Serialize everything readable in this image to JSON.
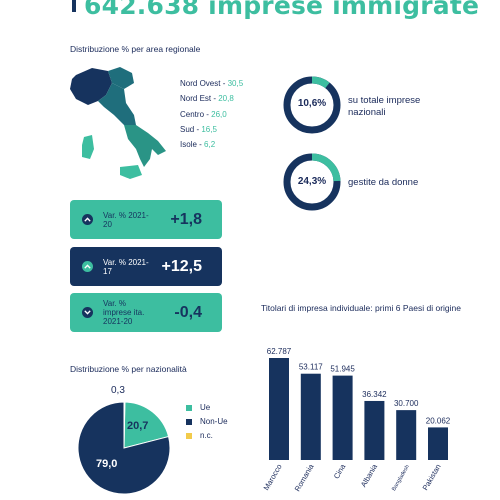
{
  "headline": "642.638 imprese immigrate",
  "colors": {
    "navy": "#16335e",
    "teal": "#3dbea0",
    "mid": "#1f6e7c",
    "yellow": "#f2cb4b"
  },
  "regional": {
    "title": "Distribuzione % per area regionale",
    "items": [
      {
        "label": "Nord Ovest",
        "value": "30,5"
      },
      {
        "label": "Nord Est",
        "value": "20,8"
      },
      {
        "label": "Centro",
        "value": "26,0"
      },
      {
        "label": "Sud",
        "value": "16,5"
      },
      {
        "label": "Isole",
        "value": "6,2"
      }
    ]
  },
  "donuts": [
    {
      "value": "10,6%",
      "percent": 10.6,
      "caption": "su totale imprese nazionali"
    },
    {
      "value": "24,3%",
      "percent": 24.3,
      "caption": "gestite da donne"
    }
  ],
  "variations": [
    {
      "label": "Var. % 2021-20",
      "value": "+1,8",
      "style": "green"
    },
    {
      "label": "Var. % 2021-17",
      "value": "+12,5",
      "style": "navy"
    },
    {
      "label": "Var. % imprese ita. 2021-20",
      "value": "-0,4",
      "style": "green"
    }
  ],
  "chart_data": [
    {
      "type": "pie",
      "title": "Distribuzione % per nazionalità",
      "categories": [
        "Ue",
        "Non-Ue",
        "n.c."
      ],
      "values": [
        20.7,
        79.0,
        0.3
      ],
      "value_labels": [
        "20,7",
        "79,0",
        "0,3"
      ],
      "colors": [
        "#3dbea0",
        "#16335e",
        "#f2cb4b"
      ],
      "legend": "right"
    },
    {
      "type": "bar",
      "title": "Titolari di impresa individuale: primi 6 Paesi di origine",
      "categories": [
        "Marocco",
        "Romania",
        "Cina",
        "Albania",
        "Bangladesh",
        "Pakistan"
      ],
      "values": [
        62787,
        53117,
        51945,
        36342,
        30700,
        20062
      ],
      "value_labels": [
        "62.787",
        "53.117",
        "51.945",
        "36.342",
        "30.700",
        "20.062"
      ],
      "color": "#16335e",
      "grid": false
    }
  ]
}
